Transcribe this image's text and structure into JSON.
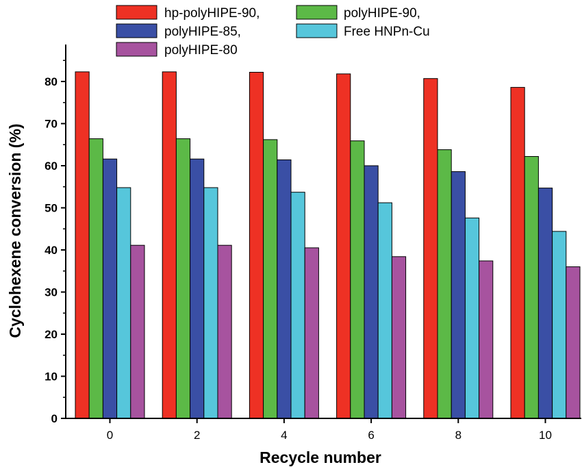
{
  "chart_data": {
    "type": "bar",
    "categories": [
      "0",
      "2",
      "4",
      "6",
      "8",
      "10"
    ],
    "xlabel": "Recycle number",
    "ylabel": "Cyclohexene conversion (%)",
    "ylim": [
      0,
      90
    ],
    "yticks": [
      "0",
      "10",
      "20",
      "30",
      "40",
      "50",
      "60",
      "70",
      "80"
    ],
    "legend_position": "top",
    "series": [
      {
        "name": "hp-polyHIPE-90,",
        "color": "#ee3124",
        "values": [
          82.3,
          82.3,
          82.2,
          81.8,
          80.7,
          78.6
        ]
      },
      {
        "name": "polyHIPE-90,",
        "color": "#5cb947",
        "values": [
          66.4,
          66.4,
          66.2,
          65.9,
          63.8,
          62.2
        ]
      },
      {
        "name": "polyHIPE-85,",
        "color": "#3a4fa5",
        "values": [
          61.6,
          61.6,
          61.4,
          60.0,
          58.6,
          54.7
        ]
      },
      {
        "name": "Free HNPn-Cu",
        "color": "#56c6db",
        "values": [
          54.8,
          54.8,
          53.7,
          51.2,
          47.6,
          44.4
        ]
      },
      {
        "name": "polyHIPE-80",
        "color": "#a7539f",
        "values": [
          41.1,
          41.1,
          40.5,
          38.4,
          37.4,
          36.0
        ]
      }
    ]
  }
}
